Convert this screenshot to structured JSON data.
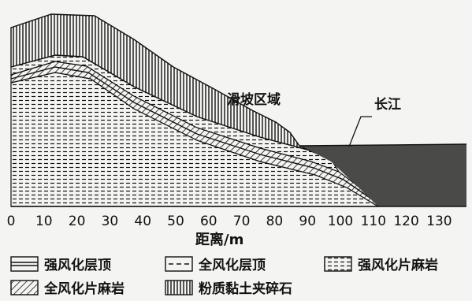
{
  "diagram": {
    "x_axis": {
      "ticks": [
        "0",
        "10",
        "20",
        "30",
        "40",
        "50",
        "60",
        "70",
        "80",
        "90",
        "100",
        "110",
        "120",
        "130"
      ],
      "title": "距离/m"
    },
    "labels": {
      "slide_area": "滑坡区域",
      "river": "长江"
    },
    "legend": [
      {
        "key": "strong-weathered-top",
        "pattern": "double-line",
        "label": "强风化层顶"
      },
      {
        "key": "full-weathered-top",
        "pattern": "dashed-double-line",
        "label": "全风化层顶"
      },
      {
        "key": "strong-weathered-gneiss",
        "pattern": "dotted-rows",
        "label": "强风化片麻岩"
      },
      {
        "key": "full-weathered-gneiss",
        "pattern": "diagonal-hatch",
        "label": "全风化片麻岩"
      },
      {
        "key": "silty-clay-gravel",
        "pattern": "vertical-lines",
        "label": "粉质黏土夹碎石"
      }
    ],
    "colors": {
      "ink": "#111111",
      "water": "#4a4a48",
      "background": "#f4f4f2"
    }
  }
}
